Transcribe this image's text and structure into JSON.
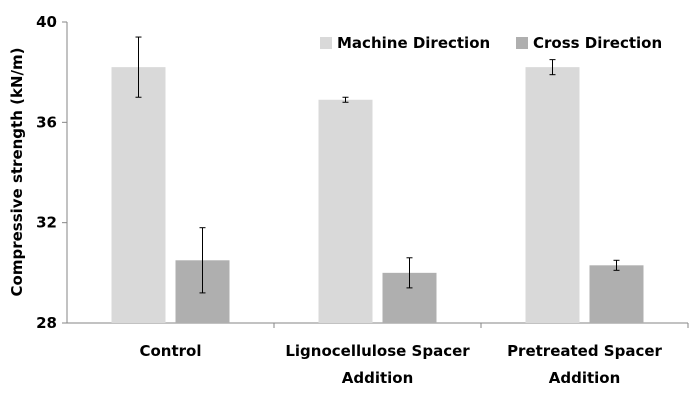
{
  "chart_data": {
    "type": "bar",
    "ylabel": "Compressive strength (kN/m)",
    "ylim": [
      28,
      40
    ],
    "yticks": [
      "28",
      "32",
      "36",
      "40"
    ],
    "categories": [
      "Control",
      "Lignocellulose Spacer Addition",
      "Pretreated Spacer Addition"
    ],
    "category_lines": [
      [
        "Control"
      ],
      [
        "Lignocellulose Spacer",
        "Addition"
      ],
      [
        "Pretreated Spacer",
        "Addition"
      ]
    ],
    "series": [
      {
        "name": "Machine Direction",
        "color": "#d9d9d9",
        "values": [
          38.2,
          36.9,
          38.2
        ],
        "err": [
          1.2,
          0.1,
          0.3
        ]
      },
      {
        "name": "Cross Direction",
        "color": "#afafaf",
        "values": [
          30.5,
          30.0,
          30.3
        ],
        "err": [
          1.3,
          0.6,
          0.2
        ]
      }
    ],
    "legend_position": "top-right",
    "grid": false
  }
}
